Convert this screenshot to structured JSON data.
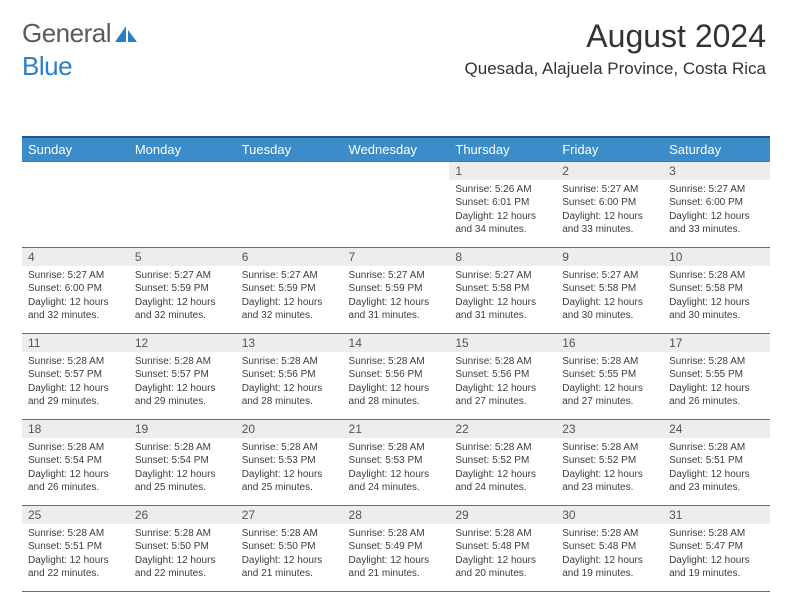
{
  "logo": {
    "word1": "General",
    "word2": "Blue"
  },
  "header": {
    "month_title": "August 2024",
    "location": "Quesada, Alajuela Province, Costa Rica"
  },
  "colors": {
    "header_bg": "#3b8cc9",
    "header_border": "#1f5a8a",
    "row_border": "#2d7fc5",
    "daynum_bg": "#ededed",
    "text": "#333333",
    "logo_gray": "#5a5a5a",
    "logo_blue": "#2d7fc5"
  },
  "day_names": [
    "Sunday",
    "Monday",
    "Tuesday",
    "Wednesday",
    "Thursday",
    "Friday",
    "Saturday"
  ],
  "weeks": [
    [
      {},
      {},
      {},
      {},
      {
        "n": "1",
        "sr": "Sunrise: 5:26 AM",
        "ss": "Sunset: 6:01 PM",
        "d1": "Daylight: 12 hours",
        "d2": "and 34 minutes."
      },
      {
        "n": "2",
        "sr": "Sunrise: 5:27 AM",
        "ss": "Sunset: 6:00 PM",
        "d1": "Daylight: 12 hours",
        "d2": "and 33 minutes."
      },
      {
        "n": "3",
        "sr": "Sunrise: 5:27 AM",
        "ss": "Sunset: 6:00 PM",
        "d1": "Daylight: 12 hours",
        "d2": "and 33 minutes."
      }
    ],
    [
      {
        "n": "4",
        "sr": "Sunrise: 5:27 AM",
        "ss": "Sunset: 6:00 PM",
        "d1": "Daylight: 12 hours",
        "d2": "and 32 minutes."
      },
      {
        "n": "5",
        "sr": "Sunrise: 5:27 AM",
        "ss": "Sunset: 5:59 PM",
        "d1": "Daylight: 12 hours",
        "d2": "and 32 minutes."
      },
      {
        "n": "6",
        "sr": "Sunrise: 5:27 AM",
        "ss": "Sunset: 5:59 PM",
        "d1": "Daylight: 12 hours",
        "d2": "and 32 minutes."
      },
      {
        "n": "7",
        "sr": "Sunrise: 5:27 AM",
        "ss": "Sunset: 5:59 PM",
        "d1": "Daylight: 12 hours",
        "d2": "and 31 minutes."
      },
      {
        "n": "8",
        "sr": "Sunrise: 5:27 AM",
        "ss": "Sunset: 5:58 PM",
        "d1": "Daylight: 12 hours",
        "d2": "and 31 minutes."
      },
      {
        "n": "9",
        "sr": "Sunrise: 5:27 AM",
        "ss": "Sunset: 5:58 PM",
        "d1": "Daylight: 12 hours",
        "d2": "and 30 minutes."
      },
      {
        "n": "10",
        "sr": "Sunrise: 5:28 AM",
        "ss": "Sunset: 5:58 PM",
        "d1": "Daylight: 12 hours",
        "d2": "and 30 minutes."
      }
    ],
    [
      {
        "n": "11",
        "sr": "Sunrise: 5:28 AM",
        "ss": "Sunset: 5:57 PM",
        "d1": "Daylight: 12 hours",
        "d2": "and 29 minutes."
      },
      {
        "n": "12",
        "sr": "Sunrise: 5:28 AM",
        "ss": "Sunset: 5:57 PM",
        "d1": "Daylight: 12 hours",
        "d2": "and 29 minutes."
      },
      {
        "n": "13",
        "sr": "Sunrise: 5:28 AM",
        "ss": "Sunset: 5:56 PM",
        "d1": "Daylight: 12 hours",
        "d2": "and 28 minutes."
      },
      {
        "n": "14",
        "sr": "Sunrise: 5:28 AM",
        "ss": "Sunset: 5:56 PM",
        "d1": "Daylight: 12 hours",
        "d2": "and 28 minutes."
      },
      {
        "n": "15",
        "sr": "Sunrise: 5:28 AM",
        "ss": "Sunset: 5:56 PM",
        "d1": "Daylight: 12 hours",
        "d2": "and 27 minutes."
      },
      {
        "n": "16",
        "sr": "Sunrise: 5:28 AM",
        "ss": "Sunset: 5:55 PM",
        "d1": "Daylight: 12 hours",
        "d2": "and 27 minutes."
      },
      {
        "n": "17",
        "sr": "Sunrise: 5:28 AM",
        "ss": "Sunset: 5:55 PM",
        "d1": "Daylight: 12 hours",
        "d2": "and 26 minutes."
      }
    ],
    [
      {
        "n": "18",
        "sr": "Sunrise: 5:28 AM",
        "ss": "Sunset: 5:54 PM",
        "d1": "Daylight: 12 hours",
        "d2": "and 26 minutes."
      },
      {
        "n": "19",
        "sr": "Sunrise: 5:28 AM",
        "ss": "Sunset: 5:54 PM",
        "d1": "Daylight: 12 hours",
        "d2": "and 25 minutes."
      },
      {
        "n": "20",
        "sr": "Sunrise: 5:28 AM",
        "ss": "Sunset: 5:53 PM",
        "d1": "Daylight: 12 hours",
        "d2": "and 25 minutes."
      },
      {
        "n": "21",
        "sr": "Sunrise: 5:28 AM",
        "ss": "Sunset: 5:53 PM",
        "d1": "Daylight: 12 hours",
        "d2": "and 24 minutes."
      },
      {
        "n": "22",
        "sr": "Sunrise: 5:28 AM",
        "ss": "Sunset: 5:52 PM",
        "d1": "Daylight: 12 hours",
        "d2": "and 24 minutes."
      },
      {
        "n": "23",
        "sr": "Sunrise: 5:28 AM",
        "ss": "Sunset: 5:52 PM",
        "d1": "Daylight: 12 hours",
        "d2": "and 23 minutes."
      },
      {
        "n": "24",
        "sr": "Sunrise: 5:28 AM",
        "ss": "Sunset: 5:51 PM",
        "d1": "Daylight: 12 hours",
        "d2": "and 23 minutes."
      }
    ],
    [
      {
        "n": "25",
        "sr": "Sunrise: 5:28 AM",
        "ss": "Sunset: 5:51 PM",
        "d1": "Daylight: 12 hours",
        "d2": "and 22 minutes."
      },
      {
        "n": "26",
        "sr": "Sunrise: 5:28 AM",
        "ss": "Sunset: 5:50 PM",
        "d1": "Daylight: 12 hours",
        "d2": "and 22 minutes."
      },
      {
        "n": "27",
        "sr": "Sunrise: 5:28 AM",
        "ss": "Sunset: 5:50 PM",
        "d1": "Daylight: 12 hours",
        "d2": "and 21 minutes."
      },
      {
        "n": "28",
        "sr": "Sunrise: 5:28 AM",
        "ss": "Sunset: 5:49 PM",
        "d1": "Daylight: 12 hours",
        "d2": "and 21 minutes."
      },
      {
        "n": "29",
        "sr": "Sunrise: 5:28 AM",
        "ss": "Sunset: 5:48 PM",
        "d1": "Daylight: 12 hours",
        "d2": "and 20 minutes."
      },
      {
        "n": "30",
        "sr": "Sunrise: 5:28 AM",
        "ss": "Sunset: 5:48 PM",
        "d1": "Daylight: 12 hours",
        "d2": "and 19 minutes."
      },
      {
        "n": "31",
        "sr": "Sunrise: 5:28 AM",
        "ss": "Sunset: 5:47 PM",
        "d1": "Daylight: 12 hours",
        "d2": "and 19 minutes."
      }
    ]
  ]
}
